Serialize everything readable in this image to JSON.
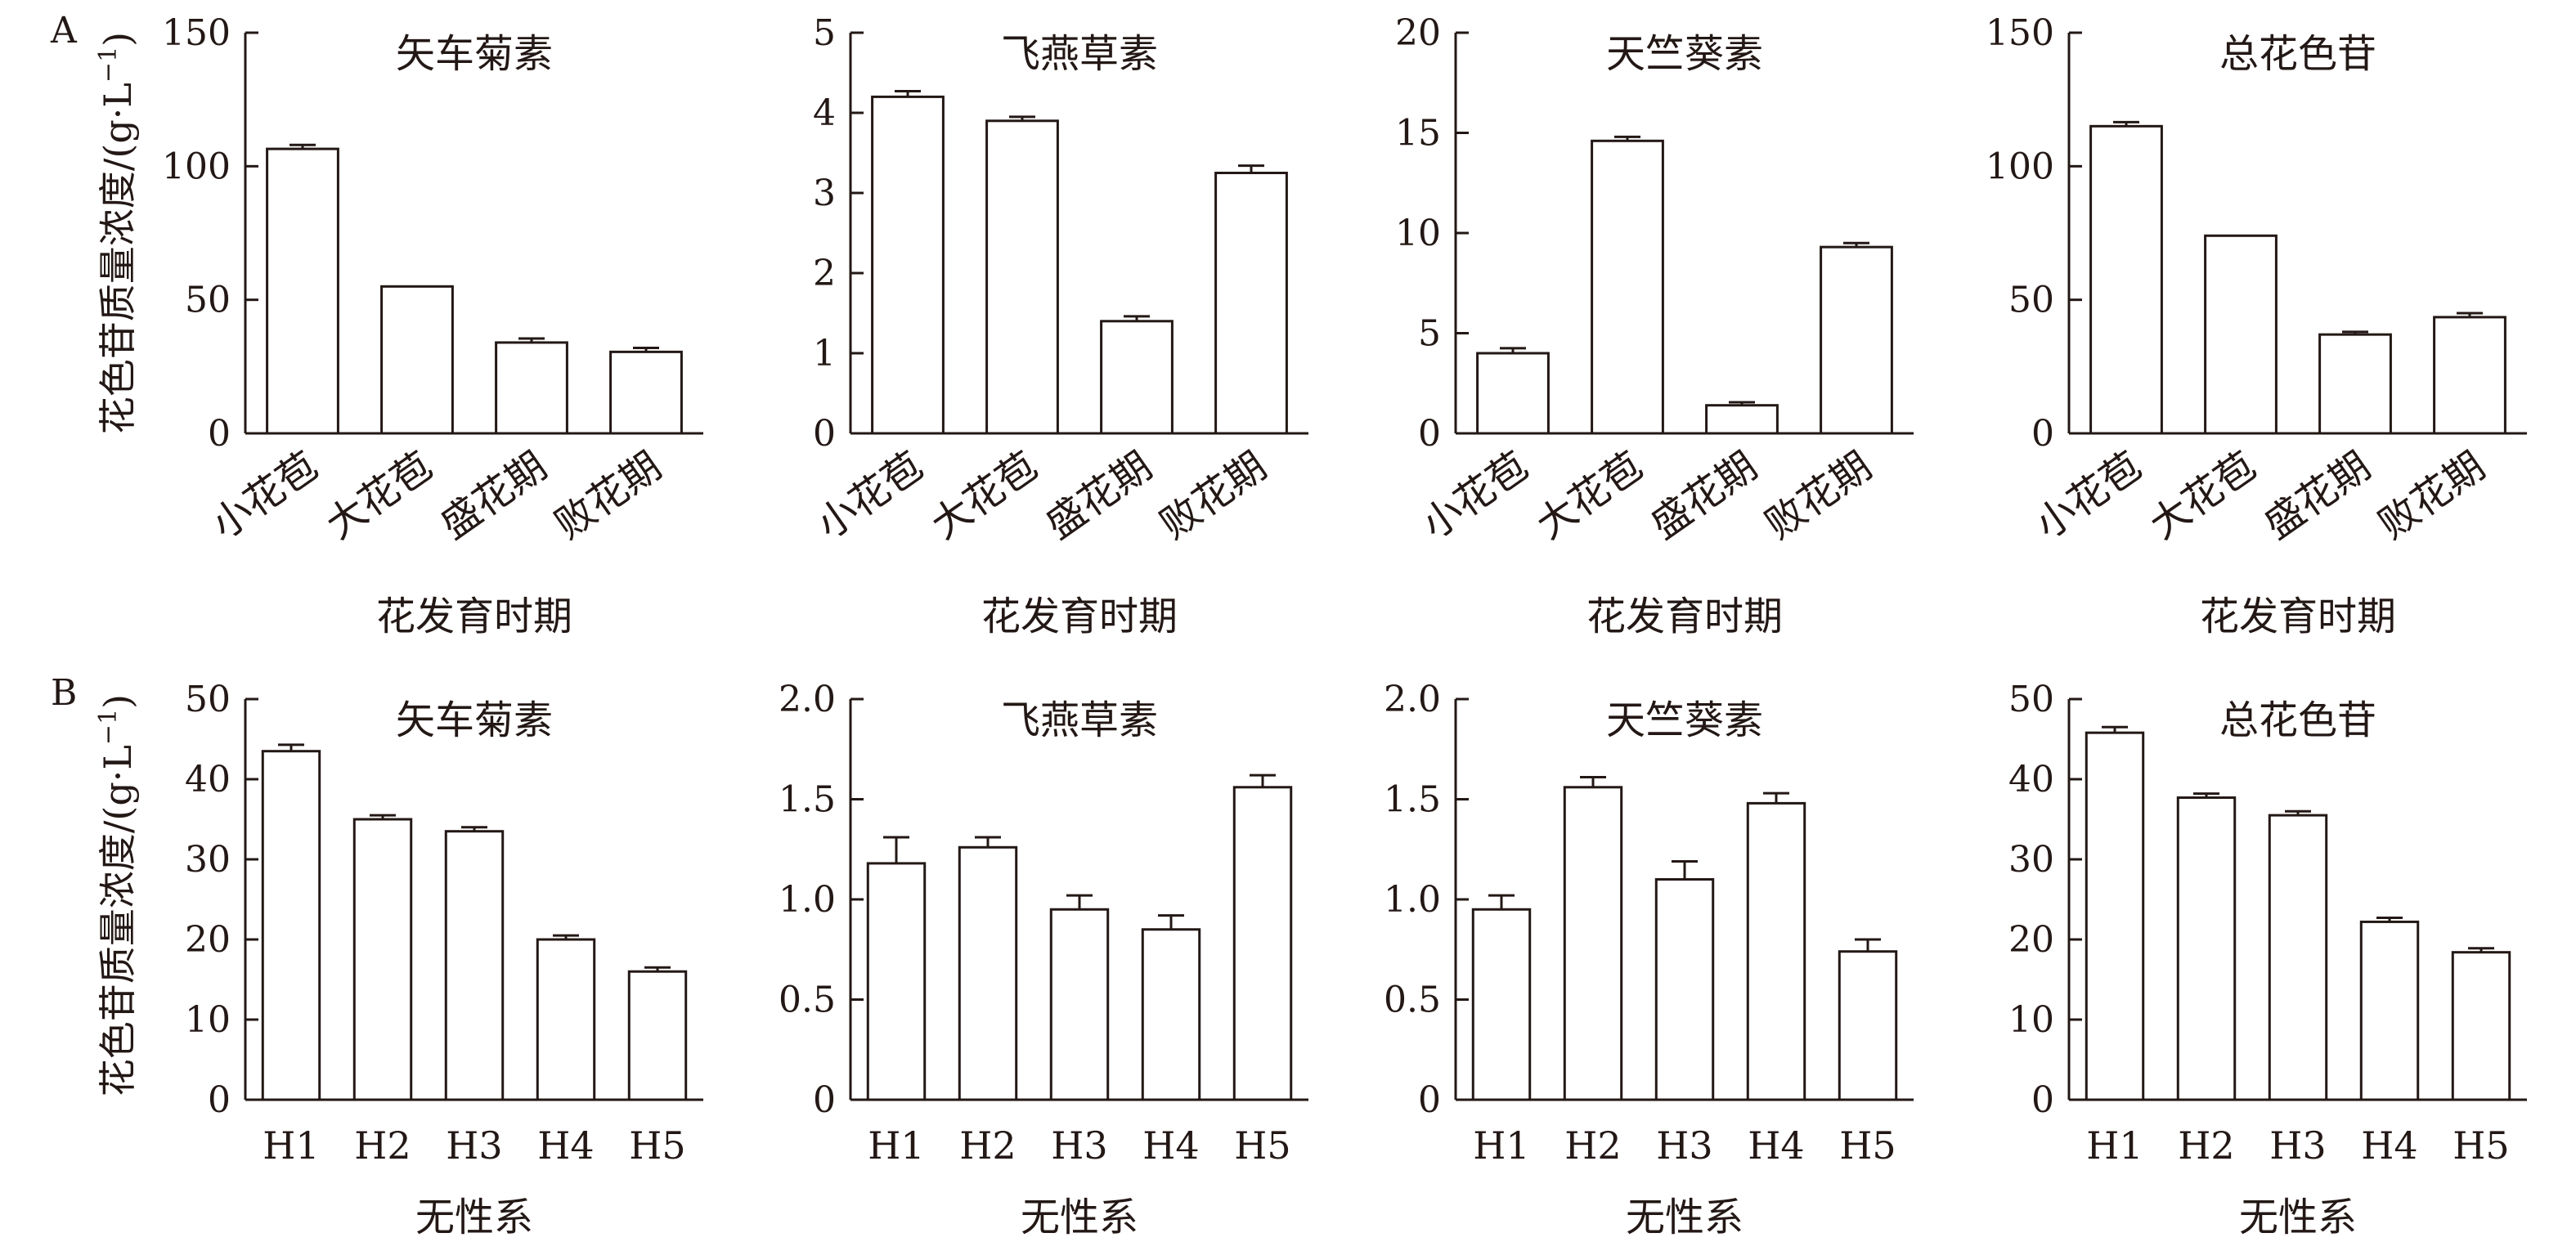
{
  "figure": {
    "panel_labels": [
      "A",
      "B"
    ],
    "ylabel": "花色苷质量浓度/(g·L",
    "ylabel_sup": "−1",
    "ylabel_close": ")"
  },
  "chart_data": [
    {
      "row": "A",
      "type": "bar",
      "title": "矢车菊素",
      "xlabel": "花发育时期",
      "ylabel": "花色苷质量浓度/(g·L−1)",
      "categories": [
        "小花苞",
        "大花苞",
        "盛花期",
        "败花期"
      ],
      "values": [
        106.5,
        55.0,
        34.0,
        30.5
      ],
      "errors": [
        1.5,
        0,
        1.5,
        1.5
      ],
      "ylim": [
        0,
        150
      ],
      "yticks": [
        "0",
        "50",
        "100",
        "150"
      ],
      "grid": false
    },
    {
      "row": "A",
      "type": "bar",
      "title": "飞燕草素",
      "xlabel": "花发育时期",
      "categories": [
        "小花苞",
        "大花苞",
        "盛花期",
        "败花期"
      ],
      "values": [
        4.2,
        3.9,
        1.4,
        3.25
      ],
      "errors": [
        0.07,
        0.05,
        0.06,
        0.09
      ],
      "ylim": [
        0,
        5
      ],
      "yticks": [
        "0",
        "1",
        "2",
        "3",
        "4",
        "5"
      ],
      "grid": false
    },
    {
      "row": "A",
      "type": "bar",
      "title": "天竺葵素",
      "xlabel": "花发育时期",
      "categories": [
        "小花苞",
        "大花苞",
        "盛花期",
        "败花期"
      ],
      "values": [
        4.0,
        14.6,
        1.4,
        9.3
      ],
      "errors": [
        0.25,
        0.2,
        0.15,
        0.2
      ],
      "ylim": [
        0,
        20
      ],
      "yticks": [
        "0",
        "5",
        "10",
        "15",
        "20"
      ],
      "grid": false
    },
    {
      "row": "A",
      "type": "bar",
      "title": "总花色苷",
      "xlabel": "花发育时期",
      "categories": [
        "小花苞",
        "大花苞",
        "盛花期",
        "败花期"
      ],
      "values": [
        115.0,
        74.0,
        37.0,
        43.5
      ],
      "errors": [
        1.5,
        0,
        1.0,
        1.5
      ],
      "ylim": [
        0,
        150
      ],
      "yticks": [
        "0",
        "50",
        "100",
        "150"
      ],
      "grid": false
    },
    {
      "row": "B",
      "type": "bar",
      "title": "矢车菊素",
      "xlabel": "无性系",
      "ylabel": "花色苷质量浓度/(g·L−1)",
      "categories": [
        "H1",
        "H2",
        "H3",
        "H4",
        "H5"
      ],
      "values": [
        43.5,
        35.0,
        33.5,
        20.0,
        16.0
      ],
      "errors": [
        0.8,
        0.5,
        0.5,
        0.5,
        0.5
      ],
      "ylim": [
        0,
        50
      ],
      "yticks": [
        "0",
        "10",
        "20",
        "30",
        "40",
        "50"
      ],
      "grid": false
    },
    {
      "row": "B",
      "type": "bar",
      "title": "飞燕草素",
      "xlabel": "无性系",
      "categories": [
        "H1",
        "H2",
        "H3",
        "H4",
        "H5"
      ],
      "values": [
        1.18,
        1.26,
        0.95,
        0.85,
        1.56
      ],
      "errors": [
        0.13,
        0.05,
        0.07,
        0.07,
        0.06
      ],
      "ylim": [
        0,
        2.0
      ],
      "yticks": [
        "0",
        "0.5",
        "1.0",
        "1.5",
        "2.0"
      ],
      "grid": false
    },
    {
      "row": "B",
      "type": "bar",
      "title": "天竺葵素",
      "xlabel": "无性系",
      "categories": [
        "H1",
        "H2",
        "H3",
        "H4",
        "H5"
      ],
      "values": [
        0.95,
        1.56,
        1.1,
        1.48,
        0.74
      ],
      "errors": [
        0.07,
        0.05,
        0.09,
        0.05,
        0.06
      ],
      "ylim": [
        0,
        2.0
      ],
      "yticks": [
        "0",
        "0.5",
        "1.0",
        "1.5",
        "2.0"
      ],
      "grid": false
    },
    {
      "row": "B",
      "type": "bar",
      "title": "总花色苷",
      "xlabel": "无性系",
      "categories": [
        "H1",
        "H2",
        "H3",
        "H4",
        "H5"
      ],
      "values": [
        45.8,
        37.7,
        35.5,
        22.2,
        18.4
      ],
      "errors": [
        0.7,
        0.5,
        0.5,
        0.5,
        0.5
      ],
      "ylim": [
        0,
        50
      ],
      "yticks": [
        "0",
        "10",
        "20",
        "30",
        "40",
        "50"
      ],
      "grid": false
    }
  ]
}
